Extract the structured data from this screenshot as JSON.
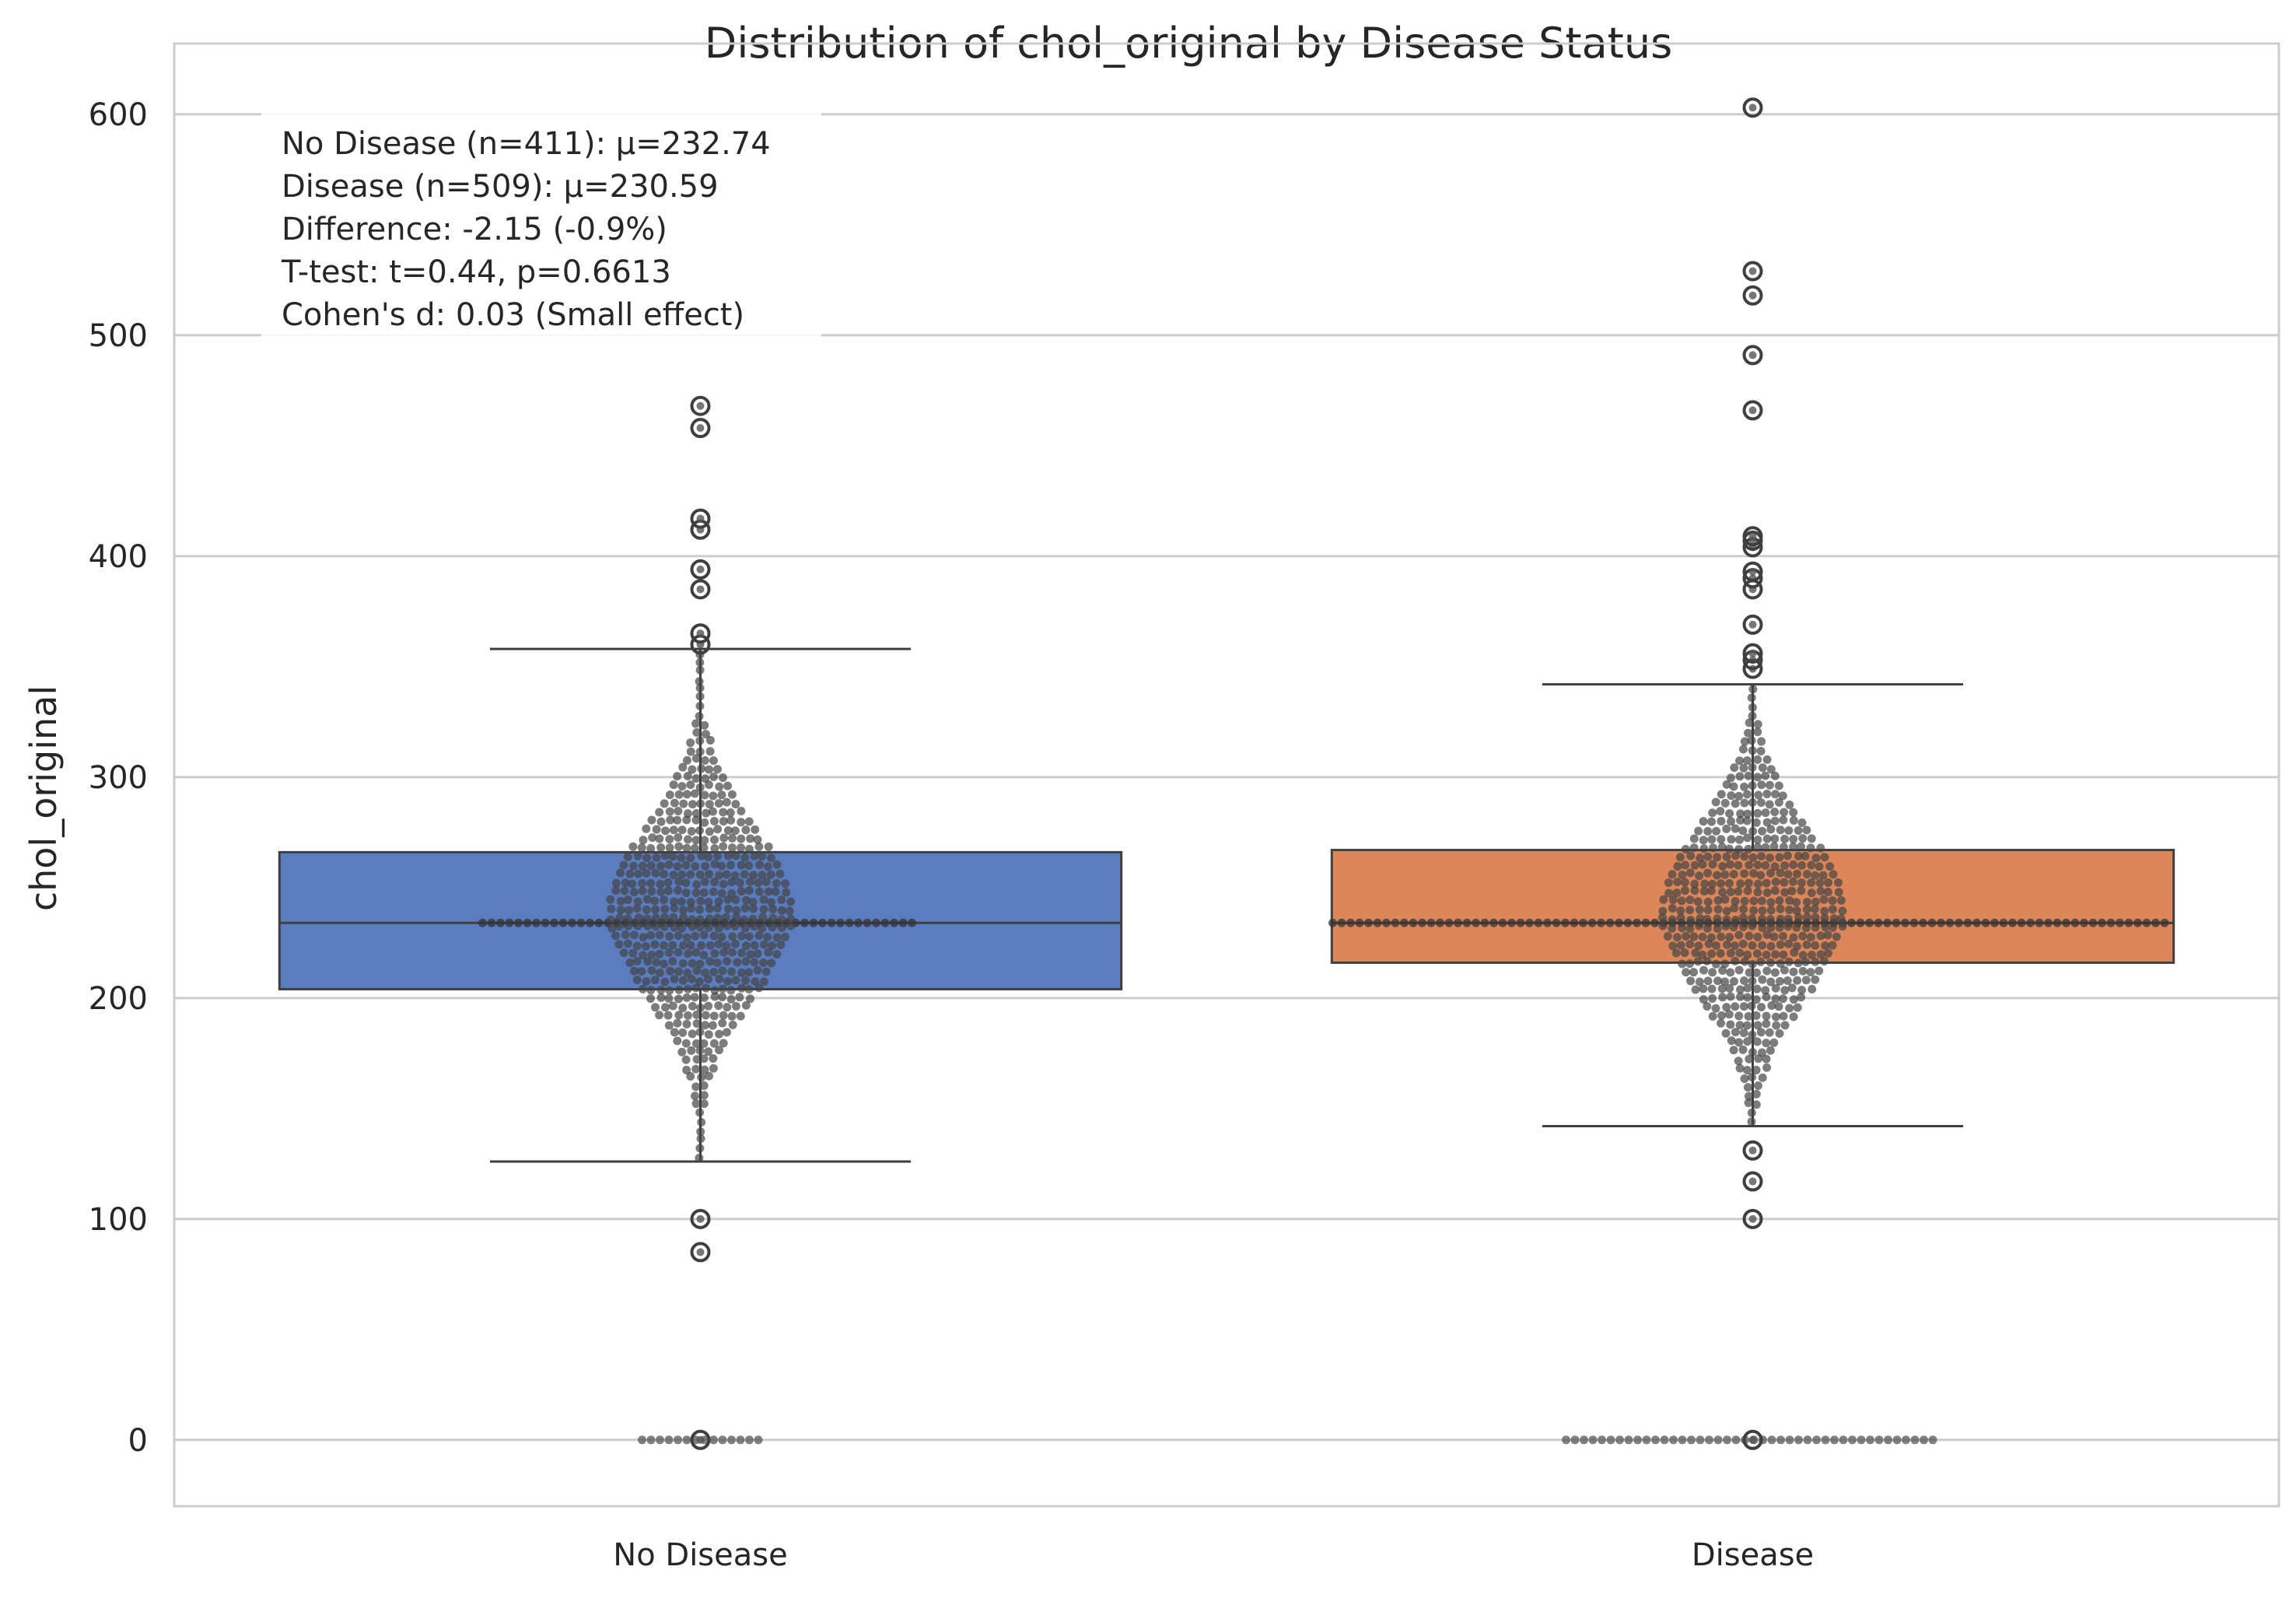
{
  "chart_data": {
    "type": "box",
    "title": "Distribution of chol_original by Disease Status",
    "xlabel": "",
    "ylabel": "chol_original",
    "ylim": [
      -30,
      632
    ],
    "yticks": [
      0,
      100,
      200,
      300,
      400,
      500,
      600
    ],
    "grid": true,
    "categories": [
      "No Disease",
      "Disease"
    ],
    "groups": [
      {
        "name": "No Disease",
        "color": "#5a7dc2",
        "q1": 204,
        "median": 234,
        "q3": 266,
        "whisker_low": 126,
        "whisker_high": 358,
        "outliers": [
          0,
          85,
          100,
          360,
          365,
          385,
          394,
          412,
          417,
          458,
          468
        ]
      },
      {
        "name": "Disease",
        "color": "#dd8758",
        "q1": 216,
        "median": 234,
        "q3": 267,
        "whisker_low": 142,
        "whisker_high": 342,
        "outliers": [
          0,
          100,
          117,
          131,
          349,
          353,
          356,
          369,
          385,
          390,
          393,
          404,
          407,
          409,
          466,
          491,
          518,
          529,
          603
        ]
      }
    ],
    "annotation": [
      "No Disease (n=411): μ=232.74",
      "Disease (n=509): μ=230.59",
      "Difference: -2.15 (-0.9%)",
      "T-test: t=0.44, p=0.6613",
      "Cohen's d: 0.03 (Small effect)"
    ]
  }
}
